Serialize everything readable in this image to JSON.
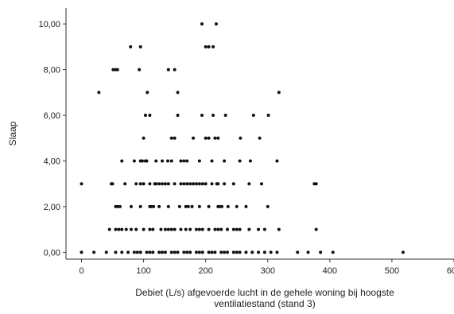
{
  "chart_data": {
    "type": "scatter",
    "title": "",
    "xlabel_lines": [
      "Debiet (L/s) afgevoerde lucht in de gehele woning bij hoogste",
      "ventilatiestand (stand 3)"
    ],
    "ylabel": "Slaap",
    "xlim": [
      -25,
      600
    ],
    "ylim": [
      -0.3,
      10.7
    ],
    "x_ticks": [
      0,
      100,
      200,
      300,
      400,
      500,
      600
    ],
    "x_tick_labels": [
      "0",
      "100",
      "200",
      "300",
      "400",
      "500",
      "600"
    ],
    "y_ticks": [
      0,
      2,
      4,
      6,
      8,
      10
    ],
    "y_tick_labels": [
      "0,00",
      "2,00",
      "4,00",
      "6,00",
      "8,00",
      "10,00"
    ],
    "grid": false,
    "colors": {
      "points": "#111111",
      "axis": "#333333",
      "background": "#ffffff"
    },
    "points": [
      [
        194,
        10
      ],
      [
        217,
        10
      ],
      [
        200,
        9
      ],
      [
        205,
        9
      ],
      [
        212,
        9
      ],
      [
        79,
        9
      ],
      [
        95,
        9
      ],
      [
        51,
        8
      ],
      [
        55,
        8
      ],
      [
        58,
        8
      ],
      [
        93,
        8
      ],
      [
        140,
        8
      ],
      [
        150,
        8
      ],
      [
        28,
        7
      ],
      [
        106,
        7
      ],
      [
        155,
        7
      ],
      [
        318,
        7
      ],
      [
        103,
        6
      ],
      [
        110,
        6
      ],
      [
        155,
        6
      ],
      [
        194,
        6
      ],
      [
        212,
        6
      ],
      [
        232,
        6
      ],
      [
        277,
        6
      ],
      [
        301,
        6
      ],
      [
        100,
        5
      ],
      [
        145,
        5
      ],
      [
        150,
        5
      ],
      [
        180,
        5
      ],
      [
        200,
        5
      ],
      [
        205,
        5
      ],
      [
        215,
        5
      ],
      [
        220,
        5
      ],
      [
        256,
        5
      ],
      [
        287,
        5
      ],
      [
        0,
        3
      ],
      [
        48,
        3
      ],
      [
        50,
        3
      ],
      [
        70,
        3
      ],
      [
        88,
        3
      ],
      [
        95,
        3
      ],
      [
        100,
        3
      ],
      [
        110,
        3
      ],
      [
        120,
        3
      ],
      [
        130,
        3
      ],
      [
        140,
        3
      ],
      [
        150,
        3
      ],
      [
        160,
        3
      ],
      [
        170,
        3
      ],
      [
        180,
        3
      ],
      [
        190,
        3
      ],
      [
        200,
        3
      ],
      [
        210,
        3
      ],
      [
        220,
        3
      ],
      [
        230,
        3
      ],
      [
        245,
        3
      ],
      [
        270,
        3
      ],
      [
        290,
        3
      ],
      [
        375,
        3
      ],
      [
        378,
        3
      ],
      [
        45,
        1
      ],
      [
        55,
        1
      ],
      [
        60,
        1
      ],
      [
        65,
        1
      ],
      [
        72,
        1
      ],
      [
        88,
        1
      ],
      [
        100,
        1
      ],
      [
        115,
        1
      ],
      [
        128,
        1
      ],
      [
        135,
        1
      ],
      [
        145,
        1
      ],
      [
        150,
        1
      ],
      [
        160,
        1
      ],
      [
        168,
        1
      ],
      [
        175,
        1
      ],
      [
        185,
        1
      ],
      [
        195,
        1
      ],
      [
        205,
        1
      ],
      [
        215,
        1
      ],
      [
        225,
        1
      ],
      [
        235,
        1
      ],
      [
        245,
        1
      ],
      [
        255,
        1
      ],
      [
        270,
        1
      ],
      [
        285,
        1
      ],
      [
        295,
        1
      ],
      [
        318,
        1
      ],
      [
        378,
        1
      ],
      [
        0,
        0
      ],
      [
        20,
        0
      ],
      [
        40,
        0
      ],
      [
        55,
        0
      ],
      [
        65,
        0
      ],
      [
        75,
        0
      ],
      [
        85,
        0
      ],
      [
        95,
        0
      ],
      [
        105,
        0
      ],
      [
        115,
        0
      ],
      [
        125,
        0
      ],
      [
        135,
        0
      ],
      [
        145,
        0
      ],
      [
        155,
        0
      ],
      [
        165,
        0
      ],
      [
        175,
        0
      ],
      [
        185,
        0
      ],
      [
        195,
        0
      ],
      [
        205,
        0
      ],
      [
        215,
        0
      ],
      [
        225,
        0
      ],
      [
        235,
        0
      ],
      [
        245,
        0
      ],
      [
        255,
        0
      ],
      [
        265,
        0
      ],
      [
        275,
        0
      ],
      [
        285,
        0
      ],
      [
        295,
        0
      ],
      [
        305,
        0
      ],
      [
        315,
        0
      ],
      [
        348,
        0
      ],
      [
        365,
        0
      ],
      [
        385,
        0
      ],
      [
        405,
        0
      ],
      [
        518,
        0
      ],
      [
        65,
        4
      ],
      [
        85,
        4
      ],
      [
        95,
        4
      ],
      [
        105,
        4
      ],
      [
        120,
        4
      ],
      [
        130,
        4
      ],
      [
        145,
        4
      ],
      [
        170,
        4
      ],
      [
        190,
        4
      ],
      [
        210,
        4
      ],
      [
        230,
        4
      ],
      [
        255,
        4
      ],
      [
        272,
        4
      ],
      [
        315,
        4
      ],
      [
        55,
        2
      ],
      [
        58,
        2
      ],
      [
        62,
        2
      ],
      [
        80,
        2
      ],
      [
        95,
        2
      ],
      [
        110,
        2
      ],
      [
        125,
        2
      ],
      [
        140,
        2
      ],
      [
        158,
        2
      ],
      [
        168,
        2
      ],
      [
        178,
        2
      ],
      [
        190,
        2
      ],
      [
        205,
        2
      ],
      [
        220,
        2
      ],
      [
        236,
        2
      ],
      [
        250,
        2
      ],
      [
        265,
        2
      ],
      [
        300,
        2
      ],
      [
        98,
        4
      ],
      [
        103,
        4
      ],
      [
        139,
        4
      ],
      [
        160,
        4
      ],
      [
        165,
        4
      ],
      [
        112,
        2
      ],
      [
        116,
        2
      ],
      [
        172,
        2
      ],
      [
        222,
        2
      ],
      [
        226,
        2
      ],
      [
        118,
        3
      ],
      [
        125,
        3
      ],
      [
        135,
        3
      ],
      [
        165,
        3
      ],
      [
        175,
        3
      ],
      [
        185,
        3
      ],
      [
        195,
        3
      ],
      [
        218,
        3
      ],
      [
        90,
        0
      ],
      [
        110,
        0
      ],
      [
        130,
        0
      ],
      [
        150,
        0
      ],
      [
        170,
        0
      ],
      [
        190,
        0
      ],
      [
        210,
        0
      ],
      [
        230,
        0
      ],
      [
        250,
        0
      ],
      [
        80,
        1
      ],
      [
        110,
        1
      ],
      [
        140,
        1
      ],
      [
        190,
        1
      ],
      [
        220,
        1
      ],
      [
        250,
        1
      ]
    ]
  }
}
